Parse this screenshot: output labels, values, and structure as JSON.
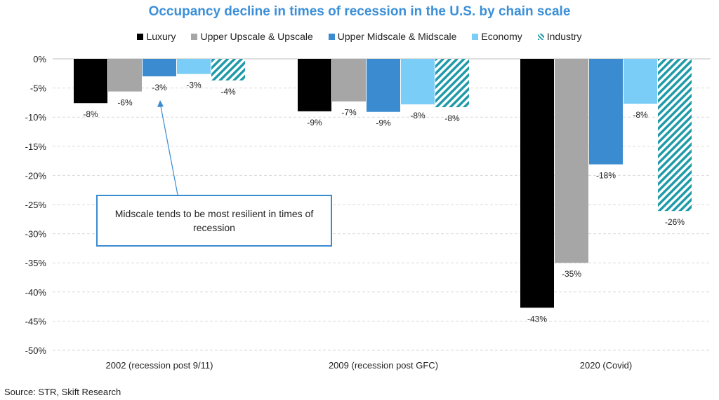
{
  "chart_data": {
    "type": "bar",
    "title": "Occupancy decline in times of recession in the U.S. by chain scale",
    "categories": [
      "2002 (recession post 9/11)",
      "2009 (recession post GFC)",
      "2020 (Covid)"
    ],
    "series": [
      {
        "name": "Luxury",
        "color": "#000000",
        "values": [
          -7.6,
          -9.0,
          -42.7
        ],
        "labels": [
          "-8%",
          "-9%",
          "-43%"
        ]
      },
      {
        "name": "Upper Upscale & Upscale",
        "color": "#a6a6a6",
        "values": [
          -5.6,
          -7.3,
          -35.0
        ],
        "labels": [
          "-6%",
          "-7%",
          "-35%"
        ]
      },
      {
        "name": "Upper Midscale & Midscale",
        "color": "#3a8bd0",
        "values": [
          -3.0,
          -9.1,
          -18.1
        ],
        "labels": [
          "-3%",
          "-9%",
          "-18%"
        ]
      },
      {
        "name": "Economy",
        "color": "#79cdf7",
        "values": [
          -2.6,
          -7.8,
          -7.7
        ],
        "labels": [
          "-3%",
          "-8%",
          "-8%"
        ]
      },
      {
        "name": "Industry",
        "color": "#1f9aa8",
        "pattern": "hatched",
        "values": [
          -3.7,
          -8.3,
          -26.1
        ],
        "labels": [
          "-4%",
          "-8%",
          "-26%"
        ]
      }
    ],
    "ylim": [
      -50,
      0
    ],
    "yticks": [
      0,
      -5,
      -10,
      -15,
      -20,
      -25,
      -30,
      -35,
      -40,
      -45,
      -50
    ],
    "ytick_labels": [
      "0%",
      "-5%",
      "-10%",
      "-15%",
      "-20%",
      "-25%",
      "-30%",
      "-35%",
      "-40%",
      "-45%",
      "-50%"
    ],
    "xlabel": "",
    "ylabel": "",
    "grid": true,
    "legend_position": "top-center",
    "annotation": "Midscale tends to be most resilient in times of recession"
  },
  "source": "Source: STR, Skift Research"
}
